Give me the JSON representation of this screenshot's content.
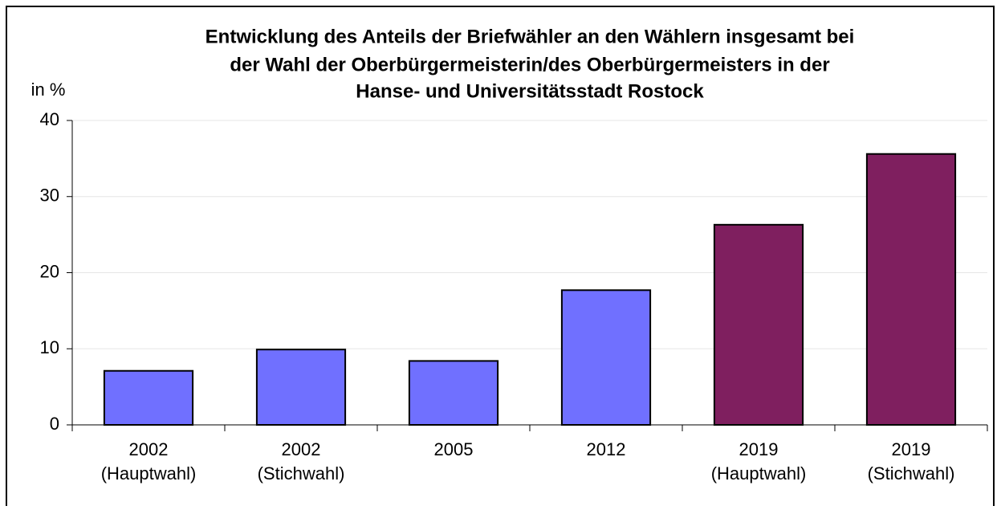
{
  "chart_data": {
    "type": "bar",
    "title": [
      "Entwicklung des Anteils der Briefwähler an den Wählern insgesamt bei",
      "der Wahl der Oberbürgermeisterin/des Oberbürgermeisters in der",
      "Hanse- und Universitätsstadt Rostock"
    ],
    "ylabel": "in %",
    "categories": [
      [
        "2002",
        "(Hauptwahl)"
      ],
      [
        "2002",
        "(Stichwahl)"
      ],
      [
        "2005"
      ],
      [
        "2012"
      ],
      [
        "2019",
        "(Hauptwahl)"
      ],
      [
        "2019",
        "(Stichwahl)"
      ]
    ],
    "values": [
      7.1,
      9.9,
      8.4,
      17.7,
      26.3,
      35.6
    ],
    "colors": [
      "#7070ff",
      "#7070ff",
      "#7070ff",
      "#7070ff",
      "#7f1f5f",
      "#7f1f5f"
    ],
    "ylim": [
      0,
      40
    ],
    "yticks": [
      0,
      10,
      20,
      30,
      40
    ],
    "grid": true
  }
}
